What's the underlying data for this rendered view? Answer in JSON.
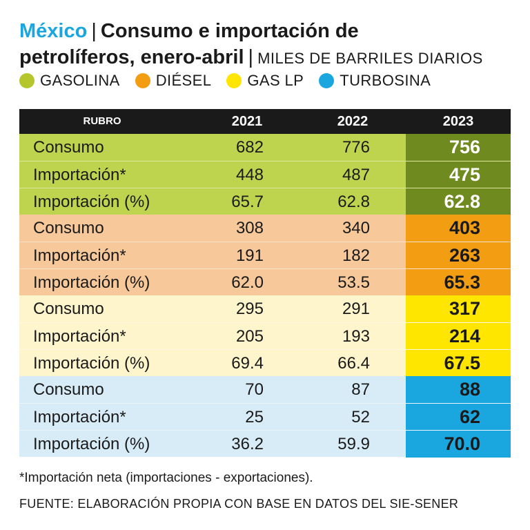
{
  "title": {
    "country": "México",
    "main_line1": "Consumo e importación de",
    "main_line2": "petrolíferos, enero-abril",
    "units": "MILES DE BARRILES DIARIOS"
  },
  "colors": {
    "gasolina_light": "#bfd44e",
    "gasolina_dark": "#6f8a1e",
    "diesel_light": "#f7c89a",
    "diesel_dark": "#f29d12",
    "gaslp_light": "#fff5cc",
    "gaslp_dark": "#ffe600",
    "turbosina_light": "#d8ecf8",
    "turbosina_dark": "#1aa6df",
    "legend_gasolina": "#b5c52c",
    "legend_diesel": "#f29d12",
    "legend_gaslp": "#ffe600",
    "legend_turbosina": "#1aa6df"
  },
  "legend": [
    "GASOLINA",
    "DIÉSEL",
    "GAS LP",
    "TURBOSINA"
  ],
  "chart_data": {
    "type": "table",
    "columns": [
      "RUBRO",
      "2021",
      "2022",
      "2023"
    ],
    "groups": [
      {
        "name": "GASOLINA",
        "rows": [
          {
            "label": "Consumo",
            "values": [
              "682",
              "776",
              "756"
            ]
          },
          {
            "label": "Importación*",
            "values": [
              "448",
              "487",
              "475"
            ]
          },
          {
            "label": "Importación (%)",
            "values": [
              "65.7",
              "62.8",
              "62.8"
            ]
          }
        ]
      },
      {
        "name": "DIÉSEL",
        "rows": [
          {
            "label": "Consumo",
            "values": [
              "308",
              "340",
              "403"
            ]
          },
          {
            "label": "Importación*",
            "values": [
              "191",
              "182",
              "263"
            ]
          },
          {
            "label": "Importación (%)",
            "values": [
              "62.0",
              "53.5",
              "65.3"
            ]
          }
        ]
      },
      {
        "name": "GAS LP",
        "rows": [
          {
            "label": "Consumo",
            "values": [
              "295",
              "291",
              "317"
            ]
          },
          {
            "label": "Importación*",
            "values": [
              "205",
              "193",
              "214"
            ]
          },
          {
            "label": "Importación (%)",
            "values": [
              "69.4",
              "66.4",
              "67.5"
            ]
          }
        ]
      },
      {
        "name": "TURBOSINA",
        "rows": [
          {
            "label": "Consumo",
            "values": [
              "70",
              "87",
              "88"
            ]
          },
          {
            "label": "Importación*",
            "values": [
              "25",
              "52",
              "62"
            ]
          },
          {
            "label": "Importación (%)",
            "values": [
              "36.2",
              "59.9",
              "70.0"
            ]
          }
        ]
      }
    ]
  },
  "footnote": "*Importación neta (importaciones - exportaciones).",
  "source": "FUENTE: ELABORACIÓN PROPIA CON BASE EN DATOS DEL SIE-SENER"
}
